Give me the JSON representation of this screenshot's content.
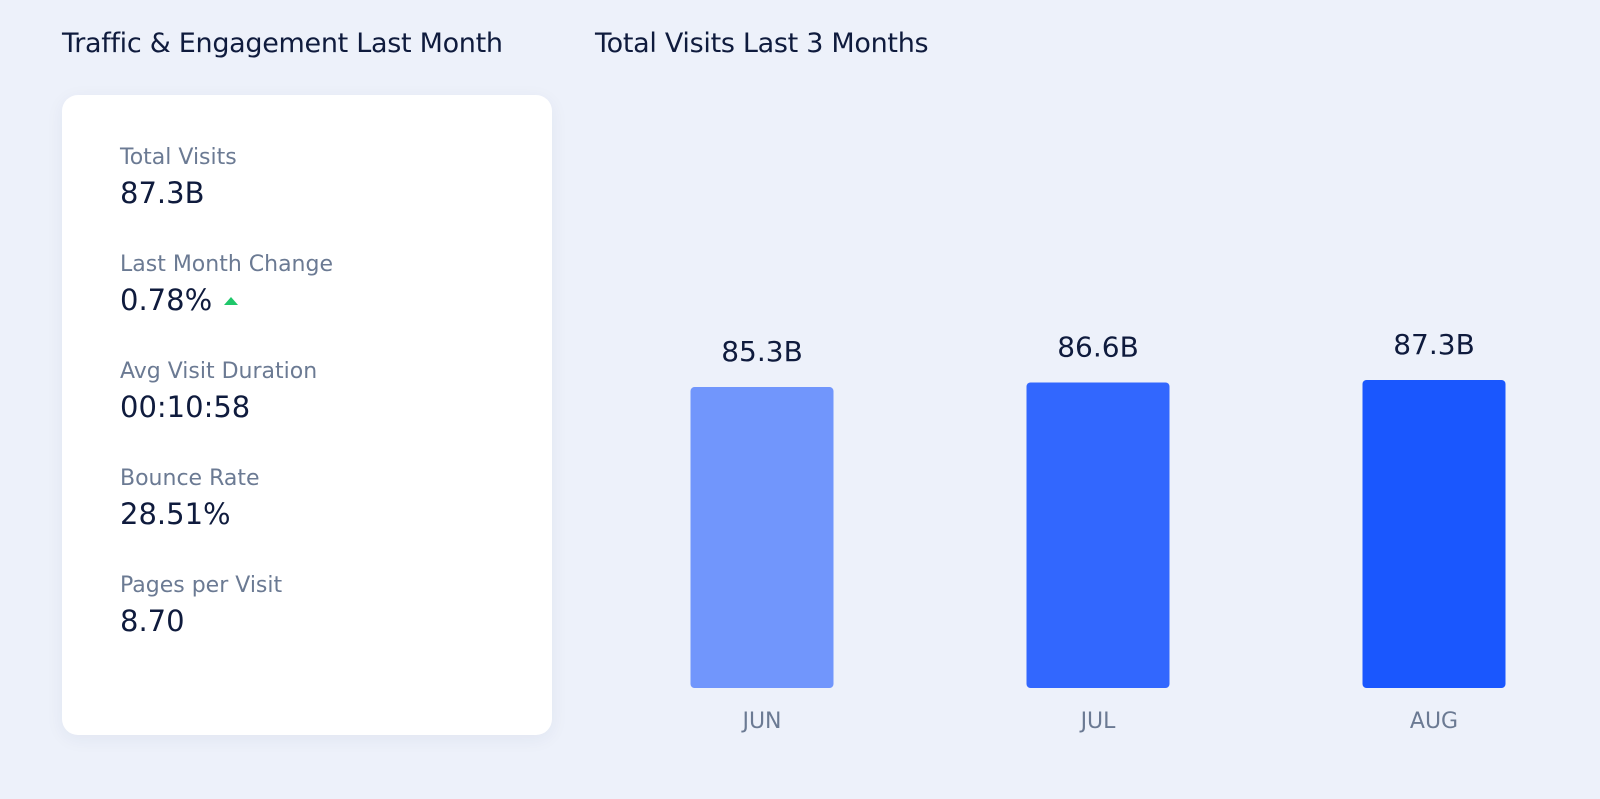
{
  "left_panel": {
    "title": "Traffic & Engagement Last Month",
    "metrics": [
      {
        "label": "Total Visits",
        "value": "87.3B"
      },
      {
        "label": "Last Month Change",
        "value": "0.78%",
        "trend_icon": "trend-up-icon",
        "trend_color": "#1fc76a"
      },
      {
        "label": "Avg Visit Duration",
        "value": "00:10:58"
      },
      {
        "label": "Bounce Rate",
        "value": "28.51%"
      },
      {
        "label": "Pages per Visit",
        "value": "8.70"
      }
    ]
  },
  "chart_data": {
    "type": "bar",
    "title": "Total Visits Last 3 Months",
    "categories": [
      "JUN",
      "JUL",
      "AUG"
    ],
    "values": [
      85.3,
      86.6,
      87.3
    ],
    "data_labels": [
      "85.3B",
      "86.6B",
      "87.3B"
    ],
    "bar_colors": [
      "#7196fc",
      "#3267fe",
      "#1a57fe"
    ],
    "ylim": [
      0,
      87.3
    ],
    "grid": false,
    "legend": "none"
  }
}
